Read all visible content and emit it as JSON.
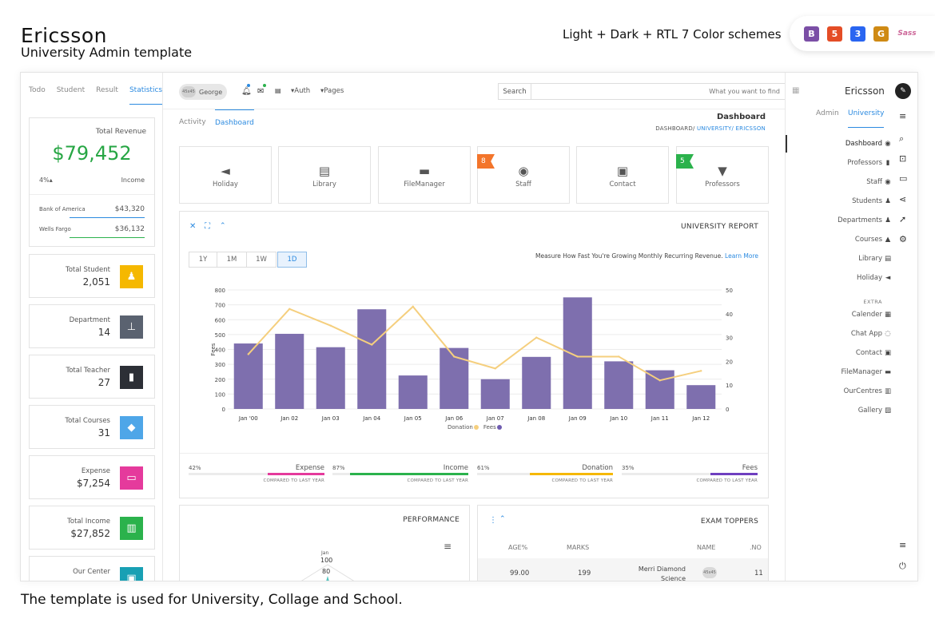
{
  "promo": {
    "title": "Ericsson",
    "subtitle": "University Admin template",
    "schemes": "Light + Dark + RTL 7 Color schemes",
    "footer": "The template is used for University, Collage and School.",
    "badges": [
      {
        "label": "B",
        "color": "#7b4fa6"
      },
      {
        "label": "5",
        "color": "#e44d26"
      },
      {
        "label": "3",
        "color": "#2965f1"
      },
      {
        "label": "G",
        "color": "#cf8a14"
      },
      {
        "label": "Sass",
        "color": "#cd6799"
      }
    ]
  },
  "left_panel": {
    "tabs": [
      "Todo",
      "Student",
      "Result",
      "Statistics"
    ],
    "revenue": {
      "label": "Total Revenue",
      "value": "$79,452",
      "pct": "4%▴",
      "income_label": "Income",
      "banks": [
        {
          "name": "Bank of America",
          "value": "$43,320"
        },
        {
          "name": "Wells Fargo",
          "value": "$36,132"
        }
      ]
    },
    "stats": [
      {
        "label": "Total Student",
        "value": "2,051",
        "icon": "users-icon",
        "color": "#f5b800"
      },
      {
        "label": "Department",
        "value": "14",
        "icon": "sitemap-icon",
        "color": "#5a6270"
      },
      {
        "label": "Total Teacher",
        "value": "27",
        "icon": "id-badge-icon",
        "color": "#2c2f36"
      },
      {
        "label": "Total Courses",
        "value": "31",
        "icon": "tag-icon",
        "color": "#4ea6e8"
      },
      {
        "label": "Expense",
        "value": "$7,254",
        "icon": "credit-card-icon",
        "color": "#e53a9c"
      },
      {
        "label": "Total Income",
        "value": "$27,852",
        "icon": "bank-icon",
        "color": "#2bb24c"
      },
      {
        "label": "Our Center",
        "value": "",
        "icon": "building-icon",
        "color": "#18a0b4"
      }
    ]
  },
  "topbar": {
    "user": "George",
    "user_avatar": "45x45",
    "menus": [
      "▾Auth",
      "▾Pages"
    ],
    "search_label": "Search",
    "search_placeholder": "What you want to find"
  },
  "subheader": {
    "tabs": [
      "Activity",
      "Dashboard"
    ],
    "title": "Dashboard",
    "breadcrumb": [
      "DASHBOARD/",
      "UNIVERSITY/",
      "ERICSSON"
    ]
  },
  "tiles": [
    {
      "label": "Holiday",
      "icon": "megaphone-icon",
      "badge": ""
    },
    {
      "label": "Library",
      "icon": "book-icon",
      "badge": ""
    },
    {
      "label": "FileManager",
      "icon": "folder-icon",
      "badge": ""
    },
    {
      "label": "Staff",
      "icon": "user-circle-icon",
      "badge": "8",
      "badge_color": "#f3752b"
    },
    {
      "label": "Contact",
      "icon": "contact-book-icon",
      "badge": ""
    },
    {
      "label": "Professors",
      "icon": "tie-icon",
      "badge": "5",
      "badge_color": "#2bb24c"
    }
  ],
  "report": {
    "title": "UNIVERSITY REPORT",
    "ranges": [
      "1Y",
      "1M",
      "1W",
      "1D"
    ],
    "note": "Measure How Fast You're Growing Monthly Recurring Revenue.",
    "note_link": "Learn More",
    "metrics": [
      {
        "pct": "42%",
        "name": "Expense",
        "fill": 0.42,
        "color": "#e53a9c",
        "caption": "COMPARED TO LAST YEAR"
      },
      {
        "pct": "87%",
        "name": "Income",
        "fill": 0.87,
        "color": "#2bb24c",
        "caption": "COMPARED TO LAST YEAR"
      },
      {
        "pct": "61%",
        "name": "Donation",
        "fill": 0.61,
        "color": "#f5b800",
        "caption": "COMPARED TO LAST YEAR"
      },
      {
        "pct": "35%",
        "name": "Fees",
        "fill": 0.35,
        "color": "#6f3fc0",
        "caption": "COMPARED TO LAST YEAR"
      }
    ]
  },
  "chart_data": {
    "type": "bar",
    "categories": [
      "Jan '00",
      "Jan 02",
      "Jan 03",
      "Jan 04",
      "Jan 05",
      "Jan 06",
      "Jan 07",
      "Jan 08",
      "Jan 09",
      "Jan 10",
      "Jan 11",
      "Jan 12"
    ],
    "series": [
      {
        "name": "Fees",
        "type": "bar",
        "axis": "left",
        "color": "#7e6fae",
        "values": [
          440,
          505,
          415,
          670,
          225,
          410,
          200,
          350,
          750,
          320,
          260,
          160
        ]
      },
      {
        "name": "Donation",
        "type": "line",
        "axis": "right",
        "color": "#f5cf7e",
        "values": [
          23,
          42,
          35,
          27,
          43,
          22,
          17,
          30,
          22,
          22,
          12,
          16
        ]
      }
    ],
    "ylabel": "Fees",
    "ylim": [
      0,
      800
    ],
    "y_ticks": [
      0,
      100,
      200,
      300,
      400,
      500,
      600,
      700,
      800
    ],
    "y2lim": [
      0,
      50
    ],
    "y2_ticks": [
      0,
      10,
      20,
      30,
      40,
      50
    ],
    "grid": true,
    "legend": "bottom"
  },
  "performance": {
    "title": "PERFORMANCE",
    "axis_label": "Jan",
    "ticks": [
      "100",
      "80"
    ]
  },
  "exam": {
    "title": "EXAM TOPPERS",
    "headers": [
      "AGE%",
      "MARKS",
      "NAME",
      ".NO"
    ],
    "rows": [
      {
        "age": "99.00",
        "marks": "199",
        "name": "Merri Diamond Science",
        "avatar": "45x45",
        "no": "11"
      }
    ]
  },
  "right_sidebar": {
    "brand": "Ericsson",
    "tabs": [
      "Admin",
      "University"
    ],
    "nav": [
      {
        "label": "Dashboard",
        "icon": "dashboard-icon",
        "glyph": "◉"
      },
      {
        "label": "Professors",
        "icon": "id-badge-icon",
        "glyph": "▮"
      },
      {
        "label": "Staff",
        "icon": "user-circle-icon",
        "glyph": "◉"
      },
      {
        "label": "Students",
        "icon": "users-icon",
        "glyph": "♟"
      },
      {
        "label": "Departments",
        "icon": "users-icon",
        "glyph": "♟"
      },
      {
        "label": "Courses",
        "icon": "graduation-cap-icon",
        "glyph": "▲"
      },
      {
        "label": "Library",
        "icon": "book-icon",
        "glyph": "▤"
      },
      {
        "label": "Holiday",
        "icon": "megaphone-icon",
        "glyph": "◄"
      }
    ],
    "extra_label": "EXTRA",
    "extra": [
      {
        "label": "Calender",
        "icon": "calendar-icon",
        "glyph": "▦"
      },
      {
        "label": "Chat App",
        "icon": "chat-icon",
        "glyph": "◌"
      },
      {
        "label": "Contact",
        "icon": "contact-book-icon",
        "glyph": "▣"
      },
      {
        "label": "FileManager",
        "icon": "folder-icon",
        "glyph": "▬"
      },
      {
        "label": "OurCentres",
        "icon": "map-icon",
        "glyph": "▥"
      },
      {
        "label": "Gallery",
        "icon": "image-icon",
        "glyph": "▨"
      }
    ]
  }
}
